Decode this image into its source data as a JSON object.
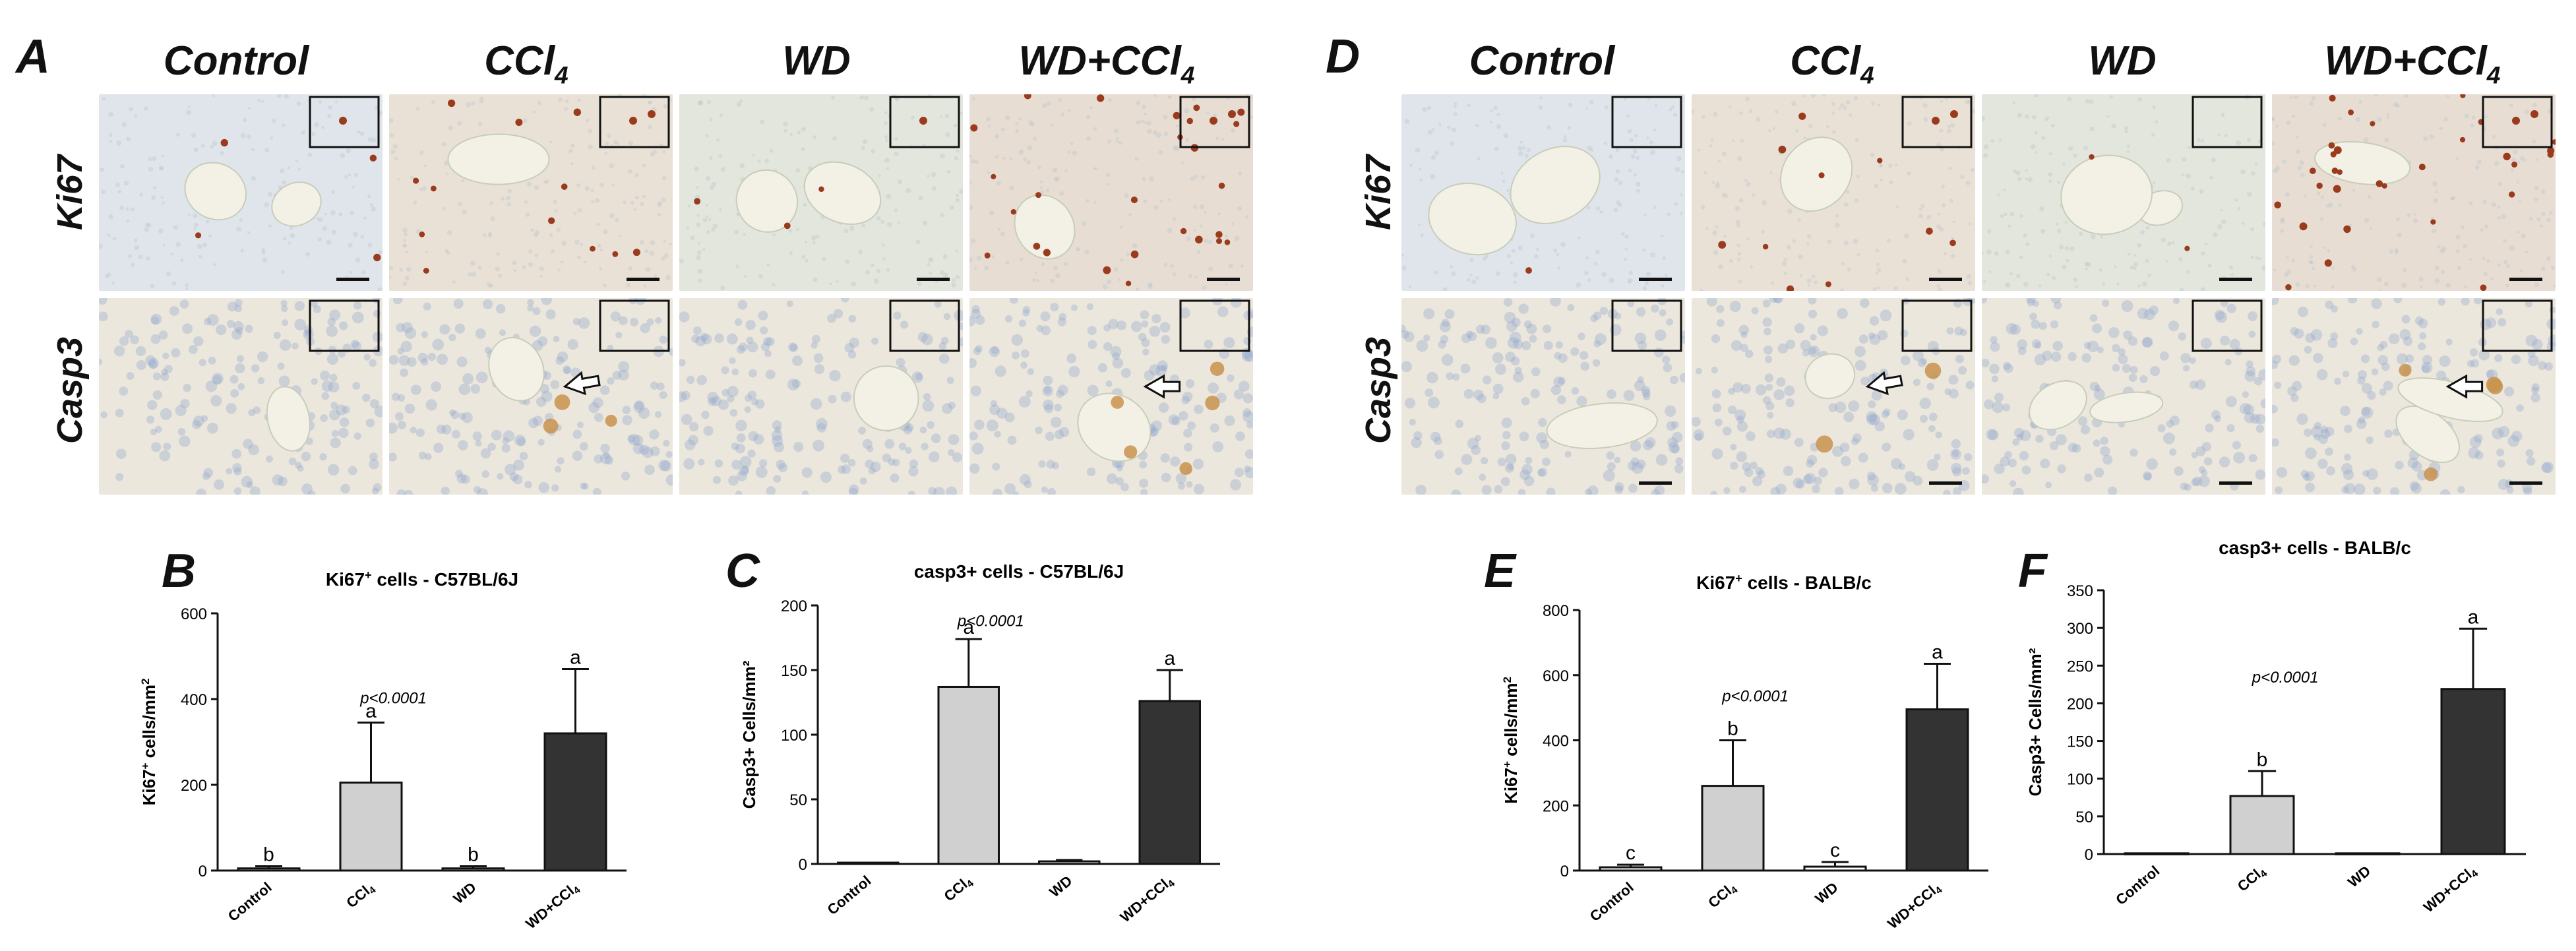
{
  "figure": {
    "left": {
      "letter": "A",
      "columns": [
        "Control",
        "CCl",
        "WD",
        "WD+CCl"
      ],
      "column_subscripts": [
        "",
        "4",
        "",
        "4"
      ],
      "rows": [
        "Ki67",
        "Casp3"
      ]
    },
    "right": {
      "letter": "D",
      "columns": [
        "Control",
        "CCl",
        "WD",
        "WD+CCl"
      ],
      "column_subscripts": [
        "",
        "4",
        "",
        "4"
      ],
      "rows": [
        "Ki67",
        "Casp3"
      ]
    },
    "tile_colors": {
      "ki67_bg_control": "#dfe5ea",
      "ki67_bg_ccl4": "#e9e1d6",
      "ki67_bg_wd": "#e2e6dc",
      "ki67_bg_wdccl4": "#e7ddd3",
      "casp3_bg": "#ece7dc",
      "nuclei_blue": "#8fa6cf",
      "ki67_positive": "#9a3b1d",
      "casp3_positive": "#c9924e",
      "vessel": "#f3f1e6"
    }
  },
  "chart_data": [
    {
      "id": "B",
      "type": "bar",
      "title": "Ki67",
      "title_sup": "+",
      "title_rest": " cells - C57BL/6J",
      "ylabel": "Ki67",
      "ylabel_sup": "+",
      "ylabel_rest": " cells/mm",
      "ylabel_sup2": "2",
      "categories": [
        "Control",
        "CCl",
        "WD",
        "WD+CCl"
      ],
      "category_subscripts": [
        "",
        "4",
        "",
        "4"
      ],
      "values": [
        5,
        205,
        5,
        320
      ],
      "errors": [
        5,
        140,
        5,
        150
      ],
      "letters": [
        "b",
        "a",
        "b",
        "a"
      ],
      "ylim": [
        0,
        600
      ],
      "yticks": [
        0,
        200,
        400,
        600
      ],
      "pvalue": "p<0.0001",
      "bar_colors": [
        "#ffffff",
        "#d0d0d0",
        "#ffffff",
        "#333333"
      ]
    },
    {
      "id": "C",
      "type": "bar",
      "title": "casp3+ cells - C57BL/6J",
      "ylabel": "Casp3+ Cells/mm²",
      "categories": [
        "Control",
        "CCl",
        "WD",
        "WD+CCl"
      ],
      "category_subscripts": [
        "",
        "4",
        "",
        "4"
      ],
      "values": [
        1,
        137,
        2,
        126
      ],
      "errors": [
        0,
        37,
        1,
        24
      ],
      "letters": [
        "",
        "a",
        "",
        "a"
      ],
      "ylim": [
        0,
        200
      ],
      "yticks": [
        0,
        50,
        100,
        150,
        200
      ],
      "pvalue": "p<0.0001",
      "bar_colors": [
        "#ffffff",
        "#d0d0d0",
        "#ffffff",
        "#333333"
      ]
    },
    {
      "id": "E",
      "type": "bar",
      "title": "Ki67",
      "title_sup": "+",
      "title_rest": " cells - BALB/c",
      "ylabel": "Ki67",
      "ylabel_sup": "+",
      "ylabel_rest": " cells/mm",
      "ylabel_sup2": "2",
      "categories": [
        "Control",
        "CCl",
        "WD",
        "WD+CCl"
      ],
      "category_subscripts": [
        "",
        "4",
        "",
        "4"
      ],
      "values": [
        10,
        260,
        12,
        495
      ],
      "errors": [
        8,
        140,
        14,
        140
      ],
      "letters": [
        "c",
        "b",
        "c",
        "a"
      ],
      "ylim": [
        0,
        800
      ],
      "yticks": [
        0,
        200,
        400,
        600,
        800
      ],
      "pvalue": "p<0.0001",
      "bar_colors": [
        "#ffffff",
        "#d0d0d0",
        "#ffffff",
        "#333333"
      ]
    },
    {
      "id": "F",
      "type": "bar",
      "title": "casp3+ cells - BALB/c",
      "ylabel": "Casp3+ Cells/mm²",
      "categories": [
        "Control",
        "CCl",
        "WD",
        "WD+CCl"
      ],
      "category_subscripts": [
        "",
        "4",
        "",
        "4"
      ],
      "values": [
        1,
        77,
        1,
        219
      ],
      "errors": [
        0,
        33,
        0,
        80
      ],
      "letters": [
        "",
        "b",
        "",
        "a"
      ],
      "ylim": [
        0,
        350
      ],
      "yticks": [
        0,
        50,
        100,
        150,
        200,
        250,
        300,
        350
      ],
      "pvalue": "p<0.0001",
      "bar_colors": [
        "#ffffff",
        "#d0d0d0",
        "#ffffff",
        "#333333"
      ]
    }
  ]
}
